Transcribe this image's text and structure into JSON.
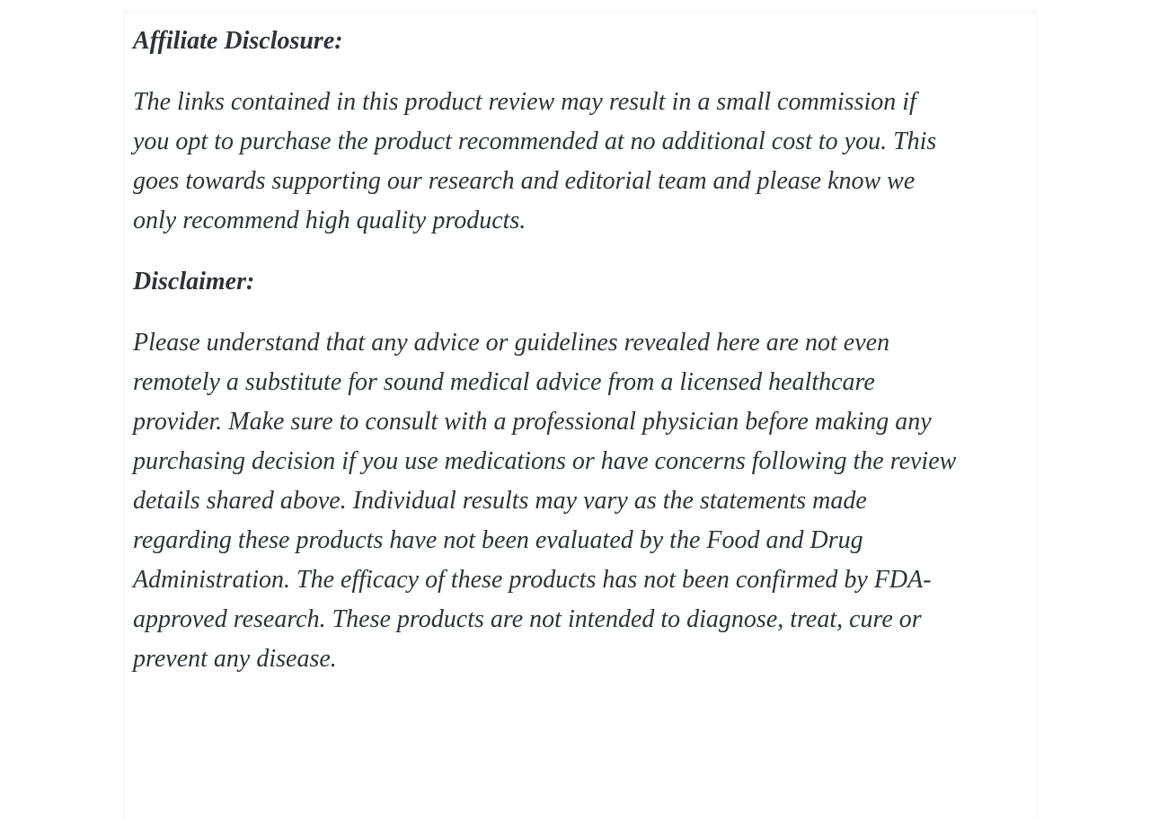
{
  "colors": {
    "text": "#2c3338",
    "page_background": "#ffffff",
    "card_background": "#ffffff",
    "card_border": "#f2f2f2"
  },
  "content": {
    "affiliate": {
      "heading": "Affiliate Disclosure:",
      "body": "The links contained in this product review may result in a small commission if\nyou opt to purchase the product recommended at no additional cost to you. This\ngoes towards supporting our research and editorial team and please know we\nonly recommend high quality products."
    },
    "disclaimer": {
      "heading": "Disclaimer:",
      "body": "Please understand that any advice or guidelines revealed here are not even\nremotely a substitute for sound medical advice from a licensed healthcare\nprovider. Make sure to consult with a professional physician before making any\npurchasing decision if you use medications or have concerns following the review\ndetails shared above. Individual results may vary as the statements made\nregarding these products have not been evaluated by the Food and Drug\nAdministration. The efficacy of these products has not been confirmed by FDA-\napproved research. These products are not intended to diagnose, treat, cure or\nprevent any disease."
    }
  }
}
